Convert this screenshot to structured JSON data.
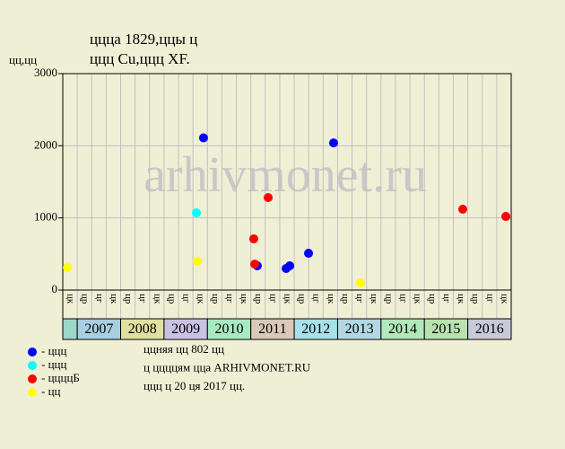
{
  "chart_data": {
    "type": "scatter",
    "title": [
      "ццца 1829,ццы ц",
      "ццц Cu,ццц XF."
    ],
    "y_label": "цц,цц",
    "watermark": "arhivmonet.ru",
    "ylim": [
      0,
      3000
    ],
    "yticks": [
      0,
      1000,
      2000,
      3000
    ],
    "xlim": [
      0,
      31
    ],
    "grid": true,
    "categories": [
      "цк",
      "цр",
      "цг",
      "цк",
      "цр",
      "цг",
      "цк",
      "цр",
      "цг",
      "цк",
      "цр",
      "цг",
      "цк",
      "цр",
      "цг",
      "цк",
      "цр",
      "цг",
      "цк",
      "цр",
      "цг",
      "цк",
      "цр",
      "цг",
      "цк",
      "цр",
      "цг",
      "цк",
      "цр",
      "цг",
      "цк"
    ],
    "years": [
      {
        "label": null,
        "color": "#99d9c6"
      },
      {
        "label": "2007",
        "color": "#a8cfe0"
      },
      {
        "label": "2008",
        "color": "#e1e0a0"
      },
      {
        "label": "2009",
        "color": "#c9c2e2"
      },
      {
        "label": "2010",
        "color": "#a9e9c2"
      },
      {
        "label": "2011",
        "color": "#d8c9b9"
      },
      {
        "label": "2012",
        "color": "#a9e0ea"
      },
      {
        "label": "2013",
        "color": "#b1d8e3"
      },
      {
        "label": "2014",
        "color": "#b2e8ba"
      },
      {
        "label": "2015",
        "color": "#b9e2b0"
      },
      {
        "label": "2016",
        "color": "#c9c9da"
      }
    ],
    "series": [
      {
        "name": "- ццц",
        "color": "#0000ff",
        "x": [
          9.73,
          13.45,
          15.44,
          15.69,
          16.99,
          18.72
        ],
        "values": [
          2110,
          336,
          299,
          336,
          510,
          2040
        ]
      },
      {
        "name": "- ццц",
        "color": "#00ffff",
        "x": [
          9.24
        ],
        "values": [
          1070
        ]
      },
      {
        "name": "- ццццБ",
        "color": "#ff0000",
        "x": [
          13.2,
          13.27,
          14.2,
          27.65,
          30.63
        ],
        "values": [
          710,
          360,
          1282,
          1120,
          1020
        ]
      },
      {
        "name": "- цц",
        "color": "#ffff00",
        "x": [
          0.31,
          9.3,
          20.58
        ],
        "values": [
          311,
          398,
          100
        ]
      }
    ],
    "notes": [
      "ццняя цц 802 цц",
      "ц ццццям цца ARHIVMONET.RU",
      "ццц ц 20 ця 2017 цц."
    ]
  }
}
